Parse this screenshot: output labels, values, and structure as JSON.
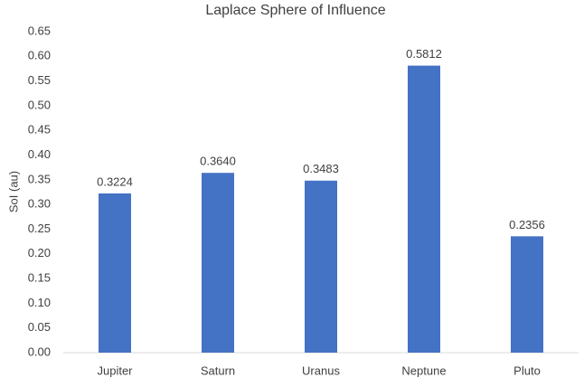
{
  "chart_data": {
    "type": "bar",
    "title": "Laplace Sphere of Influence",
    "y_label": "SoI (au)",
    "categories": [
      "Jupiter",
      "Saturn",
      "Uranus",
      "Neptune",
      "Pluto"
    ],
    "values": [
      0.3224,
      0.364,
      0.3483,
      0.5812,
      0.2356
    ],
    "value_labels": [
      "0.3224",
      "0.3640",
      "0.3483",
      "0.5812",
      "0.2356"
    ],
    "color": "#4472c4",
    "ylim": [
      0,
      0.65
    ],
    "yticks": [
      {
        "value": 0,
        "label": "0.00"
      },
      0.05,
      {
        "value": 0.1,
        "label": "0.10"
      },
      0.15,
      {
        "value": 0.2,
        "label": "0.20"
      },
      0.25,
      {
        "value": 0.3,
        "label": "0.30"
      },
      0.35,
      {
        "value": 0.4,
        "label": "0.40"
      },
      0.45,
      {
        "value": 0.5,
        "label": "0.50"
      },
      0.55,
      {
        "value": 0.6,
        "label": "0.60"
      },
      0.65
    ],
    "grid": false
  }
}
